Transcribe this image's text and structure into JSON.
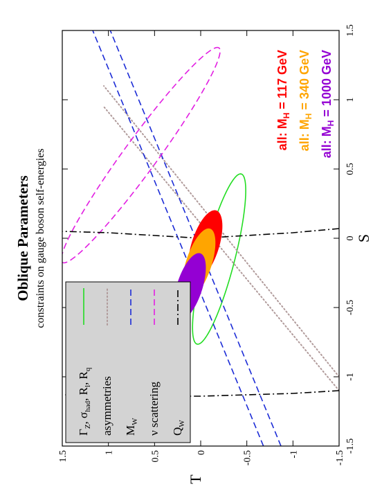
{
  "chart_data": {
    "type": "contour",
    "title": "Oblique Parameters",
    "subtitle": "constraints on gauge boson self-energies",
    "xlabel": "S",
    "ylabel": "T",
    "xlim": [
      -1.5,
      1.5
    ],
    "ylim": [
      -1.5,
      1.5
    ],
    "xticks": [
      -1.5,
      -1,
      -0.5,
      0,
      0.5,
      1,
      1.5
    ],
    "yticks": [
      -1.5,
      -1,
      -0.5,
      0,
      0.5,
      1,
      1.5
    ],
    "xtick_labels": [
      "-1.5",
      "-1",
      "-0.5",
      "0",
      "0.5",
      "1",
      "1.5"
    ],
    "ytick_labels": [
      "-1.5",
      "-1",
      "-0.5",
      "0",
      "0.5",
      "1",
      "1.5"
    ],
    "grid": false,
    "legend": {
      "placement": "top-left",
      "entries": [
        {
          "label": "Γ_Z, σ_had, R_l, R_q",
          "color": "#22dd22",
          "style": "solid"
        },
        {
          "label": "asymmetries",
          "color": "#b09a9a",
          "style": "dotted"
        },
        {
          "label": "M_W",
          "color": "#1b2bd6",
          "style": "dashed"
        },
        {
          "label": "ν scattering",
          "color": "#e21ee2",
          "style": "dashed"
        },
        {
          "label": "Q_W",
          "color": "#000000",
          "style": "dashdot"
        }
      ],
      "texts": {
        "e1_main": "Γ",
        "e1_sub1": "Z",
        "e1_sep1": ", σ",
        "e1_sub2": "had",
        "e1_sep2": ", R",
        "e1_sub3": "l",
        "e1_sep3": ", R",
        "e1_sub4": "q",
        "e2": "asymmetries",
        "e3_main": "M",
        "e3_sub": "W",
        "e4": "ν scattering",
        "e5_main": "Q",
        "e5_sub": "W"
      }
    },
    "annotations": [
      {
        "prefix": "all: M",
        "sub": "H",
        "value": " =  117 GeV",
        "color": "#ff0000"
      },
      {
        "prefix": "all: M",
        "sub": "H",
        "value": " =  340 GeV",
        "color": "#ffa500"
      },
      {
        "prefix": "all: M",
        "sub": "H",
        "value": " = 1000 GeV",
        "color": "#9400d3"
      }
    ],
    "series": [
      {
        "name": "Γ_Z, σ_had, R_l, R_q",
        "kind": "ellipse",
        "style": "solid",
        "color": "#22dd22",
        "center": [
          -0.15,
          -0.2
        ],
        "semi_axes": [
          0.66,
          0.16
        ],
        "angle_deg": -22
      },
      {
        "name": "asymmetries",
        "kind": "band",
        "style": "dotted",
        "color": "#b09a9a",
        "lines": [
          [
            [
              -1.0,
              -1.5
            ],
            [
              1.1,
              1.05
            ]
          ],
          [
            [
              -1.1,
              -1.5
            ],
            [
              0.95,
              1.05
            ]
          ]
        ]
      },
      {
        "name": "M_W",
        "kind": "band",
        "style": "dashed",
        "color": "#1b2bd6",
        "lines": [
          [
            [
              -1.5,
              -0.87
            ],
            [
              1.5,
              0.98
            ]
          ],
          [
            [
              -1.5,
              -0.68
            ],
            [
              1.5,
              1.17
            ]
          ]
        ]
      },
      {
        "name": "ν scattering",
        "kind": "ellipse",
        "style": "dashed",
        "color": "#e21ee2",
        "center": [
          0.6,
          0.65
        ],
        "semi_axes": [
          1.15,
          0.15
        ],
        "angle_deg": -48
      },
      {
        "name": "Q_W",
        "kind": "curve",
        "style": "dashdot",
        "color": "#000000",
        "curves": [
          [
            [
              -1.1,
              -1.5
            ],
            [
              -1.12,
              -1.0
            ],
            [
              -1.13,
              -0.5
            ],
            [
              -1.14,
              0.0
            ],
            [
              -1.14,
              0.5
            ],
            [
              -1.13,
              1.0
            ],
            [
              -1.13,
              1.5
            ]
          ],
          [
            [
              0.07,
              -1.5
            ],
            [
              0.04,
              -1.0
            ],
            [
              0.02,
              -0.5
            ],
            [
              0.0,
              0.0
            ],
            [
              0.02,
              0.5
            ],
            [
              0.04,
              1.0
            ],
            [
              0.05,
              1.5
            ]
          ]
        ]
      },
      {
        "name": "117 GeV",
        "kind": "filled-ellipse",
        "color": "#ff0000",
        "center": [
          -0.05,
          -0.05
        ],
        "semi_axes": [
          0.28,
          0.14
        ],
        "angle_deg": -30
      },
      {
        "name": "340 GeV",
        "kind": "filled-ellipse",
        "color": "#ffa500",
        "center": [
          -0.18,
          0.02
        ],
        "semi_axes": [
          0.28,
          0.13
        ],
        "angle_deg": -30
      },
      {
        "name": "1000 GeV",
        "kind": "filled-ellipse",
        "color": "#9400d3",
        "center": [
          -0.35,
          0.12
        ],
        "semi_axes": [
          0.27,
          0.13
        ],
        "angle_deg": -30
      }
    ]
  }
}
